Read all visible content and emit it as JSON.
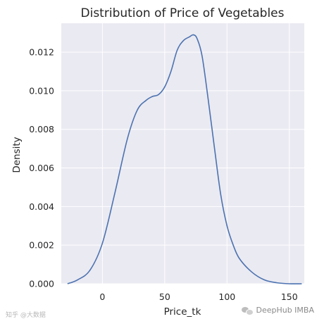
{
  "chart_data": {
    "type": "line",
    "title": "Distribution of Price of Vegetables",
    "xlabel": "Price_tk",
    "ylabel": "Density",
    "xlim": [
      -33,
      162
    ],
    "ylim": [
      0,
      0.0135
    ],
    "grid": true,
    "xticks": [
      0,
      50,
      100,
      150
    ],
    "xtick_labels": [
      "0",
      "50",
      "100",
      "150"
    ],
    "yticks": [
      0,
      0.002,
      0.004,
      0.006,
      0.008,
      0.01,
      0.012
    ],
    "ytick_labels": [
      "0.000",
      "0.002",
      "0.004",
      "0.006",
      "0.008",
      "0.010",
      "0.012"
    ],
    "series": [
      {
        "color": "#4c72b0",
        "x": [
          -28,
          -20,
          -10,
          0,
          10,
          20,
          28,
          35,
          40,
          45,
          50,
          55,
          60,
          65,
          70,
          73,
          76,
          80,
          85,
          90,
          95,
          100,
          105,
          110,
          120,
          130,
          140,
          150,
          160
        ],
        "y": [
          0.0,
          0.0002,
          0.0007,
          0.0021,
          0.0047,
          0.0075,
          0.009,
          0.0095,
          0.0097,
          0.0098,
          0.0102,
          0.011,
          0.0121,
          0.0126,
          0.0128,
          0.0129,
          0.0127,
          0.0118,
          0.0095,
          0.007,
          0.0046,
          0.003,
          0.002,
          0.0013,
          0.0006,
          0.0002,
          5e-05,
          0.0,
          0.0
        ]
      }
    ]
  },
  "watermark_right": "DeepHub IMBA",
  "watermark_left": "知乎 @大数据",
  "colors": {
    "plot_bg": "#eaeaf2",
    "grid": "#ffffff",
    "line": "#4c72b0",
    "text": "#262626"
  }
}
